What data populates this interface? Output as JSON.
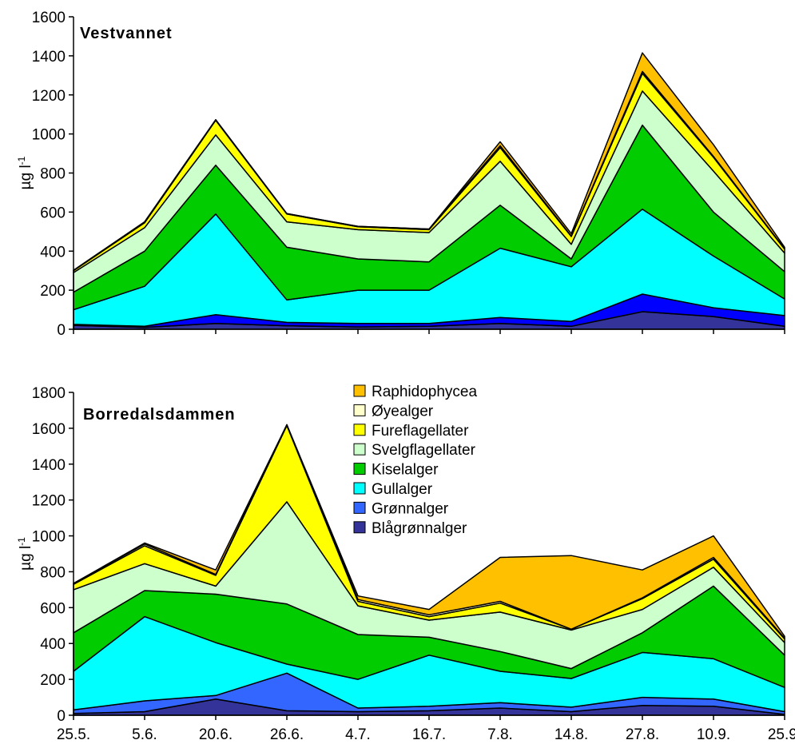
{
  "chart_data": [
    {
      "type": "area",
      "stacked": true,
      "title": "Vestvannet",
      "xlabel": "",
      "ylabel": "µg l",
      "ylabel_superscript": "-1",
      "ylim": [
        0,
        1600
      ],
      "yticks": [
        0,
        200,
        400,
        600,
        800,
        1000,
        1200,
        1400,
        1600
      ],
      "grid": false,
      "categories": [
        "25.5.",
        "5.6.",
        "20.6.",
        "26.6.",
        "4.7.",
        "16.7.",
        "7.8.",
        "14.8.",
        "27.8.",
        "10.9.",
        "25.9."
      ],
      "series": [
        {
          "name": "Blågrønnalger",
          "color": "#333399",
          "values": [
            20,
            10,
            30,
            18,
            12,
            15,
            30,
            15,
            90,
            65,
            15
          ]
        },
        {
          "name": "Grønnalger",
          "color": "#0000FF",
          "values": [
            5,
            5,
            45,
            17,
            18,
            15,
            30,
            25,
            90,
            45,
            55
          ]
        },
        {
          "name": "Gullalger",
          "color": "#00FFFF",
          "values": [
            75,
            205,
            515,
            115,
            170,
            170,
            355,
            280,
            435,
            265,
            85
          ]
        },
        {
          "name": "Kiselalger",
          "color": "#00CC00",
          "values": [
            90,
            180,
            250,
            270,
            160,
            145,
            220,
            40,
            430,
            225,
            140
          ]
        },
        {
          "name": "Svelgflagellater",
          "color": "#CCFFCC",
          "values": [
            100,
            120,
            155,
            130,
            150,
            150,
            225,
            75,
            175,
            210,
            95
          ]
        },
        {
          "name": "Fureflagellater",
          "color": "#FFFF00",
          "values": [
            10,
            25,
            75,
            40,
            15,
            15,
            70,
            40,
            90,
            70,
            20
          ]
        },
        {
          "name": "Øyealger",
          "color": "#FFFFCC",
          "values": [
            2,
            5,
            3,
            2,
            2,
            3,
            10,
            2,
            10,
            5,
            2
          ]
        },
        {
          "name": "Raphidophycea",
          "color": "#FFC000",
          "values": [
            0,
            0,
            0,
            0,
            0,
            0,
            20,
            13,
            95,
            60,
            8
          ]
        }
      ]
    },
    {
      "type": "area",
      "stacked": true,
      "title": "Borredalsdammen",
      "xlabel": "",
      "ylabel": "µg l",
      "ylabel_superscript": "-1",
      "ylim": [
        0,
        1800
      ],
      "yticks": [
        0,
        200,
        400,
        600,
        800,
        1000,
        1200,
        1400,
        1600,
        1800
      ],
      "grid": false,
      "legend": "top-center",
      "categories": [
        "25.5.",
        "5.6.",
        "20.6.",
        "26.6.",
        "4.7.",
        "16.7.",
        "7.8.",
        "14.8.",
        "27.8.",
        "10.9.",
        "25.9."
      ],
      "series": [
        {
          "name": "Blågrønnalger",
          "color": "#333399",
          "values": [
            10,
            20,
            90,
            25,
            20,
            25,
            40,
            20,
            55,
            50,
            5
          ]
        },
        {
          "name": "Grønnalger",
          "color": "#3366FF",
          "values": [
            20,
            60,
            20,
            210,
            20,
            25,
            30,
            25,
            45,
            40,
            15
          ]
        },
        {
          "name": "Gullalger",
          "color": "#00FFFF",
          "values": [
            215,
            470,
            295,
            50,
            160,
            285,
            175,
            160,
            250,
            225,
            135
          ]
        },
        {
          "name": "Kiselalger",
          "color": "#00CC00",
          "values": [
            215,
            145,
            270,
            335,
            250,
            100,
            110,
            55,
            110,
            405,
            180
          ]
        },
        {
          "name": "Svelgflagellater",
          "color": "#CCFFCC",
          "values": [
            240,
            150,
            45,
            570,
            160,
            95,
            220,
            215,
            130,
            105,
            70
          ]
        },
        {
          "name": "Fureflagellater",
          "color": "#FFFF00",
          "values": [
            30,
            100,
            60,
            425,
            25,
            20,
            50,
            5,
            60,
            45,
            20
          ]
        },
        {
          "name": "Øyealger",
          "color": "#FFFFCC",
          "values": [
            5,
            10,
            5,
            5,
            10,
            10,
            10,
            0,
            5,
            10,
            5
          ]
        },
        {
          "name": "Raphidophycea",
          "color": "#FFC000",
          "values": [
            0,
            5,
            25,
            0,
            20,
            30,
            245,
            410,
            155,
            120,
            10
          ]
        }
      ]
    }
  ]
}
